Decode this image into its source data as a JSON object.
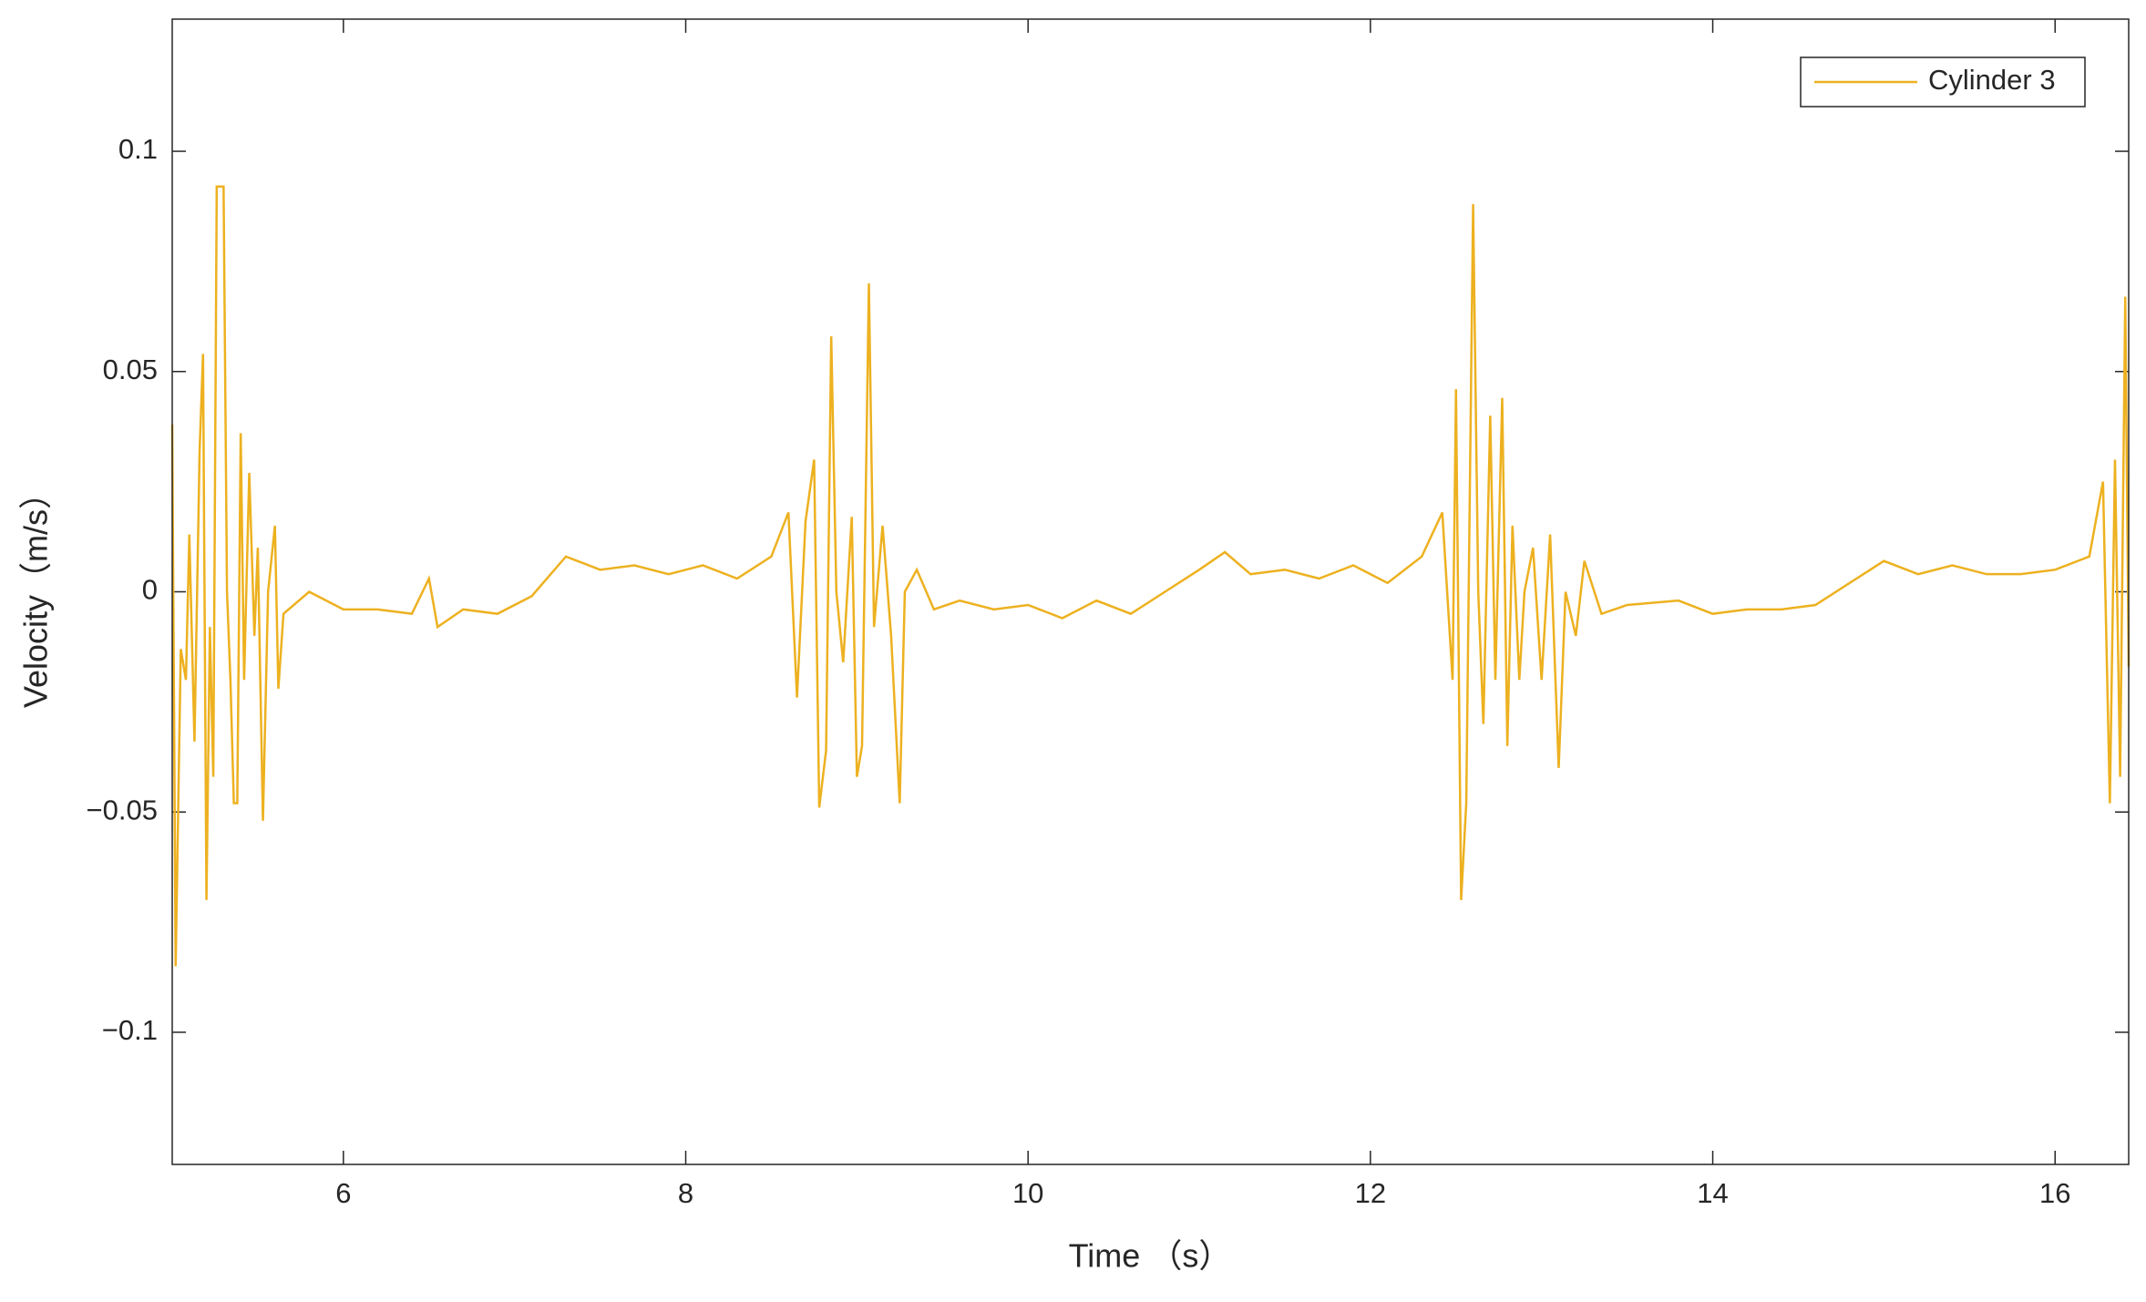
{
  "chart_data": {
    "type": "line",
    "xlabel": "Time （s）",
    "ylabel": "Velocity（m/s）",
    "xlim": [
      5,
      16.43
    ],
    "ylim": [
      -0.13,
      0.13
    ],
    "xticks": [
      6,
      8,
      10,
      12,
      14,
      16
    ],
    "yticks": [
      {
        "value": -0.1,
        "label": "−0.1"
      },
      {
        "value": -0.05,
        "label": "−0.05"
      },
      0,
      0.05,
      0.1
    ],
    "grid": false,
    "legend": "upper right",
    "series": [
      {
        "name": "Cylinder 3",
        "color": "#EDB120",
        "x": [
          5.0,
          5.02,
          5.05,
          5.08,
          5.1,
          5.13,
          5.16,
          5.18,
          5.2,
          5.22,
          5.24,
          5.26,
          5.3,
          5.32,
          5.34,
          5.36,
          5.38,
          5.4,
          5.42,
          5.45,
          5.48,
          5.5,
          5.53,
          5.56,
          5.6,
          5.62,
          5.65,
          5.8,
          6.0,
          6.2,
          6.4,
          6.5,
          6.55,
          6.7,
          6.9,
          7.1,
          7.3,
          7.5,
          7.7,
          7.9,
          8.1,
          8.3,
          8.5,
          8.6,
          8.65,
          8.7,
          8.75,
          8.78,
          8.82,
          8.85,
          8.88,
          8.92,
          8.97,
          9.0,
          9.03,
          9.07,
          9.1,
          9.15,
          9.2,
          9.25,
          9.28,
          9.35,
          9.45,
          9.6,
          9.8,
          10.0,
          10.2,
          10.4,
          10.6,
          10.8,
          11.0,
          11.15,
          11.3,
          11.5,
          11.7,
          11.9,
          12.1,
          12.3,
          12.42,
          12.48,
          12.5,
          12.53,
          12.56,
          12.6,
          12.63,
          12.66,
          12.7,
          12.73,
          12.77,
          12.8,
          12.83,
          12.87,
          12.9,
          12.95,
          13.0,
          13.05,
          13.1,
          13.14,
          13.2,
          13.25,
          13.35,
          13.5,
          13.8,
          14.0,
          14.2,
          14.4,
          14.6,
          14.8,
          15.0,
          15.2,
          15.4,
          15.6,
          15.8,
          16.0,
          16.2,
          16.28,
          16.32,
          16.35,
          16.38,
          16.41,
          16.43
        ],
        "values": [
          0.038,
          -0.085,
          -0.013,
          -0.02,
          0.013,
          -0.034,
          0.032,
          0.054,
          -0.07,
          -0.008,
          -0.042,
          0.092,
          0.092,
          0.0,
          -0.02,
          -0.048,
          -0.048,
          0.036,
          -0.02,
          0.027,
          -0.01,
          0.01,
          -0.052,
          0.0,
          0.015,
          -0.022,
          -0.005,
          0.0,
          -0.004,
          -0.004,
          -0.005,
          0.003,
          -0.008,
          -0.004,
          -0.005,
          -0.001,
          0.008,
          0.005,
          0.006,
          0.004,
          0.006,
          0.003,
          0.008,
          0.018,
          -0.024,
          0.016,
          0.03,
          -0.049,
          -0.036,
          0.058,
          0.0,
          -0.016,
          0.017,
          -0.042,
          -0.035,
          0.07,
          -0.008,
          0.015,
          -0.01,
          -0.048,
          0.0,
          0.005,
          -0.004,
          -0.002,
          -0.004,
          -0.003,
          -0.006,
          -0.002,
          -0.005,
          0.0,
          0.005,
          0.009,
          0.004,
          0.005,
          0.003,
          0.006,
          0.002,
          0.008,
          0.018,
          -0.02,
          0.046,
          -0.07,
          -0.048,
          0.088,
          0.0,
          -0.03,
          0.04,
          -0.02,
          0.044,
          -0.035,
          0.015,
          -0.02,
          0.0,
          0.01,
          -0.02,
          0.013,
          -0.04,
          0.0,
          -0.01,
          0.007,
          -0.005,
          -0.003,
          -0.002,
          -0.005,
          -0.004,
          -0.004,
          -0.003,
          0.002,
          0.007,
          0.004,
          0.006,
          0.004,
          0.004,
          0.005,
          0.008,
          0.025,
          -0.048,
          0.03,
          -0.042,
          0.067,
          -0.017
        ]
      }
    ]
  }
}
